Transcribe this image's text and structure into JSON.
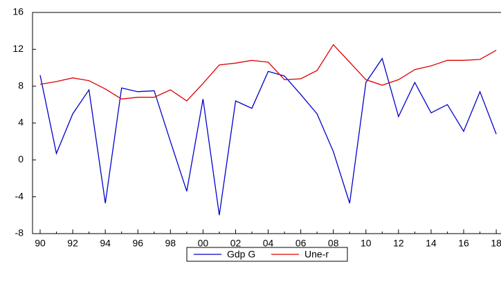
{
  "chart_data": {
    "type": "line",
    "categories": [
      "90",
      null,
      "92",
      null,
      "94",
      null,
      "96",
      null,
      "98",
      null,
      "00",
      null,
      "02",
      null,
      "04",
      null,
      "06",
      null,
      "08",
      null,
      "10",
      null,
      "12",
      null,
      "14",
      null,
      "16",
      null,
      "18"
    ],
    "series": [
      {
        "name": "Gdp G",
        "color": "#0000cc",
        "values": [
          9.2,
          0.7,
          5.0,
          7.6,
          -4.7,
          7.8,
          7.4,
          7.5,
          2.0,
          -3.4,
          6.6,
          -6.0,
          6.4,
          5.6,
          9.6,
          9.1,
          7.1,
          5.0,
          0.9,
          -4.7,
          8.4,
          11.0,
          4.7,
          8.4,
          5.1,
          6.0,
          3.1,
          7.4,
          2.8
        ]
      },
      {
        "name": "Une-r",
        "color": "#dd0000",
        "values": [
          8.2,
          8.5,
          8.9,
          8.6,
          7.7,
          6.6,
          6.8,
          6.8,
          7.6,
          6.4,
          8.3,
          10.3,
          10.5,
          10.8,
          10.6,
          8.7,
          8.8,
          9.7,
          12.5,
          10.6,
          8.7,
          8.1,
          8.7,
          9.8,
          10.2,
          10.8,
          10.8,
          10.9,
          11.9
        ]
      }
    ],
    "ylim": [
      -8,
      16
    ],
    "yticks": [
      -8,
      -4,
      0,
      4,
      8,
      12,
      16
    ],
    "grid": false,
    "legend": "bottom"
  }
}
